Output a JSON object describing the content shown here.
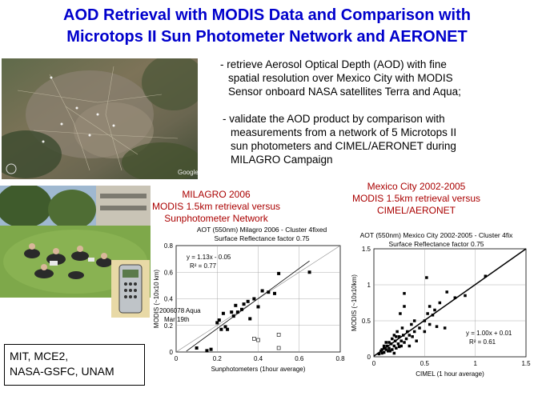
{
  "title": {
    "line1": "AOD Retrieval with MODIS Data and Comparison with",
    "line2": "Microtops II Sun Photometer Network and AERONET"
  },
  "bullets": {
    "b1": [
      "- retrieve Aerosol Optical Depth (AOD) with fine",
      "spatial resolution over Mexico City with MODIS",
      "Sensor onboard NASA satellites Terra and Aqua;"
    ],
    "b2": [
      "- validate the AOD product by comparison with",
      "measurements from a network of 5 Microtops II",
      "sun photometers and CIMEL/AERONET during",
      "MILAGRO Campaign"
    ]
  },
  "map": {
    "logo": "Google",
    "icon": "satellite-map"
  },
  "labels": {
    "left": [
      "MILAGRO 2006",
      "MODIS 1.5km retrieval versus",
      "Sunphotometer Network"
    ],
    "right": [
      "Mexico City 2002-2005",
      "MODIS 1.5km retrieval versus",
      "CIMEL/AERONET"
    ]
  },
  "credit": [
    "MIT, MCE2,",
    "NASA-GSFC, UNAM"
  ],
  "chart_data": [
    {
      "type": "scatter",
      "title": "AOT (550nm) Milagro 2006 - Cluster 4fixed",
      "subtitle": "Surface Reflectance factor 0.75",
      "xlabel": "Sunphotometers (1hour average)",
      "ylabel": "MODIS (~10x10 km)",
      "xlim": [
        0,
        0.8
      ],
      "ylim": [
        0,
        0.8
      ],
      "xticks": [
        "0",
        "0.2",
        "0.4",
        "0.6",
        "0.8"
      ],
      "yticks": [
        "0",
        "0.2",
        "0.4",
        "0.6",
        "0.8"
      ],
      "fit": {
        "slope": 1.13,
        "intercept": -0.05,
        "equation": "y = 1.13x - 0.05",
        "r2": "R² = 0.77",
        "x_range": [
          0.05,
          0.65
        ]
      },
      "annotation": [
        "2006078 Aqua",
        "Mar 19th"
      ],
      "filled_points": [
        [
          0.1,
          0.03
        ],
        [
          0.15,
          0.01
        ],
        [
          0.17,
          0.02
        ],
        [
          0.2,
          0.22
        ],
        [
          0.21,
          0.24
        ],
        [
          0.23,
          0.29
        ],
        [
          0.22,
          0.17
        ],
        [
          0.25,
          0.17
        ],
        [
          0.24,
          0.19
        ],
        [
          0.27,
          0.3
        ],
        [
          0.28,
          0.27
        ],
        [
          0.29,
          0.35
        ],
        [
          0.3,
          0.3
        ],
        [
          0.32,
          0.32
        ],
        [
          0.33,
          0.36
        ],
        [
          0.35,
          0.38
        ],
        [
          0.36,
          0.25
        ],
        [
          0.38,
          0.4
        ],
        [
          0.4,
          0.34
        ],
        [
          0.42,
          0.46
        ],
        [
          0.45,
          0.45
        ],
        [
          0.48,
          0.44
        ],
        [
          0.5,
          0.59
        ],
        [
          0.65,
          0.6
        ]
      ],
      "open_points": [
        [
          0.38,
          0.1
        ],
        [
          0.4,
          0.09
        ],
        [
          0.5,
          0.13
        ],
        [
          0.5,
          0.03
        ]
      ]
    },
    {
      "type": "scatter",
      "title": "AOT (550nm) Mexico City 2002-2005 - Cluster 4fix",
      "subtitle": "Surface Reflectance factor 0.75",
      "xlabel": "CIMEL (1 hour average)",
      "ylabel": "MODIS (~10x10km)",
      "xlim": [
        0,
        1.5
      ],
      "ylim": [
        0,
        1.5
      ],
      "xticks": [
        "0",
        "0.5",
        "1",
        "1.5"
      ],
      "yticks": [
        "0",
        "0.5",
        "1",
        "1.5"
      ],
      "fit": {
        "slope": 1.0,
        "intercept": 0.01,
        "equation": "y = 1.00x + 0.01",
        "r2": "R² = 0.61",
        "x_range": [
          0,
          1.5
        ]
      },
      "filled_points": [
        [
          0.05,
          0.04
        ],
        [
          0.07,
          0.08
        ],
        [
          0.08,
          0.05
        ],
        [
          0.1,
          0.12
        ],
        [
          0.1,
          0.06
        ],
        [
          0.12,
          0.1
        ],
        [
          0.13,
          0.15
        ],
        [
          0.14,
          0.08
        ],
        [
          0.15,
          0.2
        ],
        [
          0.15,
          0.12
        ],
        [
          0.17,
          0.18
        ],
        [
          0.18,
          0.1
        ],
        [
          0.18,
          0.25
        ],
        [
          0.2,
          0.15
        ],
        [
          0.2,
          0.3
        ],
        [
          0.21,
          0.22
        ],
        [
          0.22,
          0.12
        ],
        [
          0.23,
          0.35
        ],
        [
          0.24,
          0.18
        ],
        [
          0.25,
          0.28
        ],
        [
          0.25,
          0.14
        ],
        [
          0.26,
          0.6
        ],
        [
          0.27,
          0.22
        ],
        [
          0.28,
          0.4
        ],
        [
          0.29,
          0.3
        ],
        [
          0.3,
          0.2
        ],
        [
          0.3,
          0.7
        ],
        [
          0.3,
          0.88
        ],
        [
          0.32,
          0.25
        ],
        [
          0.33,
          0.35
        ],
        [
          0.35,
          0.3
        ],
        [
          0.35,
          0.15
        ],
        [
          0.37,
          0.45
        ],
        [
          0.38,
          0.28
        ],
        [
          0.4,
          0.5
        ],
        [
          0.4,
          0.35
        ],
        [
          0.42,
          0.22
        ],
        [
          0.45,
          0.4
        ],
        [
          0.5,
          0.5
        ],
        [
          0.5,
          0.35
        ],
        [
          0.52,
          1.1
        ],
        [
          0.53,
          0.6
        ],
        [
          0.55,
          0.7
        ],
        [
          0.55,
          0.45
        ],
        [
          0.58,
          0.58
        ],
        [
          0.6,
          0.65
        ],
        [
          0.62,
          0.42
        ],
        [
          0.65,
          0.75
        ],
        [
          0.7,
          0.4
        ],
        [
          0.72,
          0.9
        ],
        [
          0.8,
          0.82
        ],
        [
          0.9,
          0.85
        ],
        [
          1.1,
          1.12
        ],
        [
          0.1,
          0.15
        ],
        [
          0.12,
          0.2
        ],
        [
          0.16,
          0.08
        ],
        [
          0.08,
          0.1
        ],
        [
          0.2,
          0.05
        ],
        [
          0.22,
          0.28
        ],
        [
          0.27,
          0.15
        ]
      ]
    }
  ]
}
